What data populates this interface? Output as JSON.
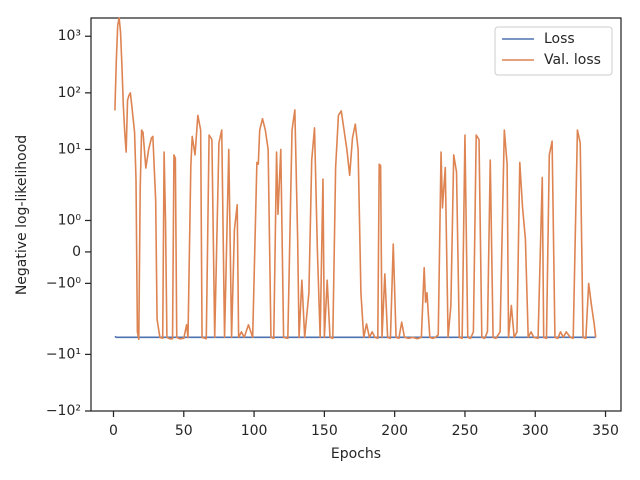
{
  "chart_data": {
    "type": "line",
    "xlabel": "Epochs",
    "ylabel": "Negative log-likelihood",
    "xlim": [
      -16,
      361
    ],
    "xticks": [
      0,
      50,
      100,
      150,
      200,
      250,
      300,
      350
    ],
    "yscale": "symlog",
    "linthresh": 2,
    "ylim": [
      -100,
      2100
    ],
    "yticks": [
      {
        "value": 1000,
        "label": "10³"
      },
      {
        "value": 100,
        "label": "10²"
      },
      {
        "value": 10,
        "label": "10¹"
      },
      {
        "value": 1,
        "label": "10⁰"
      },
      0,
      {
        "value": -1,
        "label": "−10⁰"
      },
      {
        "value": -10,
        "label": "−10¹"
      },
      {
        "value": -100,
        "label": "−10²"
      }
    ],
    "legend": "upper right",
    "series": [
      {
        "name": "Loss",
        "color": "#4c72b0",
        "x": [
          1,
          2,
          343
        ],
        "values": [
          -4.8,
          -5.0,
          -5.0
        ]
      },
      {
        "name": "Val. loss",
        "color": "#dd8452",
        "x": [
          1,
          2,
          3,
          4,
          5,
          6,
          7,
          8,
          9,
          10,
          11,
          12,
          13,
          15,
          16,
          17,
          18,
          19,
          20,
          21,
          23,
          25,
          27,
          28,
          30,
          31,
          33,
          35,
          36,
          37,
          38,
          40,
          42,
          43,
          44,
          45,
          47,
          50,
          52,
          53,
          55,
          56,
          58,
          60,
          62,
          63,
          66,
          68,
          70,
          72,
          75,
          77,
          79,
          82,
          84,
          86,
          88,
          89,
          91,
          93,
          96,
          99,
          102,
          103,
          104,
          106,
          108,
          110,
          112,
          114,
          116,
          117,
          119,
          121,
          124,
          127,
          129,
          131,
          132,
          134,
          136,
          139,
          141,
          143,
          145,
          147,
          149,
          150,
          152,
          154,
          156,
          158,
          160,
          162,
          164,
          166,
          168,
          170,
          172,
          174,
          176,
          178,
          180,
          182,
          184,
          186,
          188,
          189,
          190,
          191,
          193,
          195,
          197,
          199,
          201,
          203,
          205,
          207,
          210,
          213,
          216,
          219,
          221,
          222,
          223,
          225,
          227,
          229,
          231,
          233,
          234,
          236,
          238,
          240,
          242,
          244,
          246,
          248,
          250,
          252,
          254,
          256,
          258,
          260,
          262,
          264,
          266,
          268,
          270,
          272,
          275,
          278,
          280,
          281,
          283,
          285,
          287,
          289,
          291,
          293,
          295,
          297,
          299,
          302,
          305,
          306,
          308,
          310,
          312,
          314,
          316,
          318,
          320,
          322,
          325,
          327,
          330,
          332,
          334,
          336,
          338,
          340,
          342,
          343
        ],
        "values": [
          49,
          375,
          1550,
          2100,
          1200,
          300,
          60,
          20,
          9,
          74,
          90,
          100,
          60,
          20,
          3,
          -4,
          -5.4,
          2,
          22,
          20,
          4.7,
          10,
          16,
          17,
          1.65,
          -2.4,
          -5,
          -5.2,
          9,
          1,
          -5,
          -5.3,
          -5.3,
          8,
          7,
          -5,
          -5.3,
          -5.2,
          -3,
          -5,
          5,
          17,
          8,
          40,
          22,
          -5,
          -5.3,
          18,
          15,
          -5,
          13,
          22,
          -5,
          10,
          -5,
          0.7,
          1.5,
          -5,
          -4,
          -5,
          -3,
          -5,
          5.9,
          5.5,
          22,
          35,
          22,
          10,
          -5,
          -5.2,
          9,
          1.2,
          10,
          -5,
          -5.2,
          22,
          50,
          0.4,
          -5,
          -0.9,
          -5,
          -1.3,
          6.5,
          24,
          0.1,
          -5,
          3,
          -5,
          -0.9,
          -5,
          -5.2,
          4.8,
          40,
          48,
          22,
          10,
          3.5,
          16,
          28,
          10,
          -1.3,
          -5,
          -2.9,
          -5,
          -4,
          -5,
          -5.2,
          5.5,
          5.2,
          -5,
          -0.7,
          -5,
          -5.2,
          0.25,
          -5,
          -5.2,
          -2.7,
          -5,
          -5.2,
          -5,
          -5.3,
          -5,
          -0.5,
          -1.6,
          -1.3,
          -5,
          -5.2,
          -5,
          -4.5,
          9,
          1.4,
          4.8,
          -5,
          -1.7,
          8,
          4,
          -5,
          -5.2,
          18,
          -5,
          -5.2,
          -4,
          18,
          15,
          -5,
          -5.2,
          -4,
          6.5,
          -5,
          -5.2,
          -4,
          22,
          5.5,
          -5,
          -1.7,
          -5,
          -4,
          5.9,
          1.4,
          0.4,
          -5,
          -4,
          -5,
          -5.2,
          3.2,
          -5,
          -5.2,
          8,
          14,
          -5,
          -5.2,
          -4,
          -5,
          -4,
          -5,
          -5.2,
          22,
          13,
          -5,
          -5.2,
          -1,
          -1.7,
          -3,
          -5
        ]
      }
    ]
  }
}
